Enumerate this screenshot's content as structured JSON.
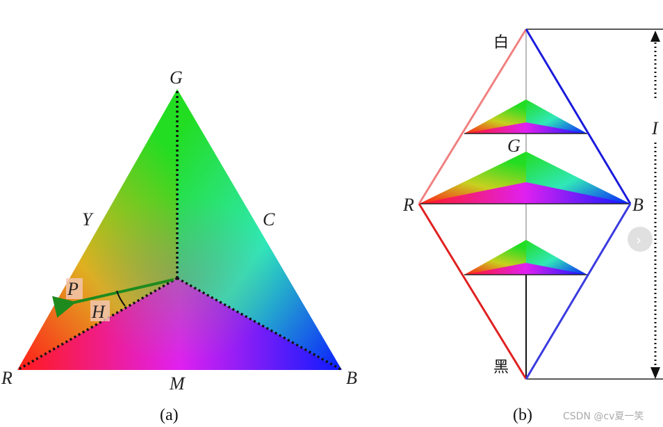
{
  "panel_a": {
    "caption": "(a)",
    "vertex_labels": {
      "red": "R",
      "green": "G",
      "blue": "B"
    },
    "edge_labels": {
      "yellow": "Y",
      "cyan": "C",
      "magenta": "M"
    },
    "point_label": "P",
    "hue_label": "H"
  },
  "panel_b": {
    "caption": "(b)",
    "white_label": "白",
    "black_label": "黑",
    "vertex_labels": {
      "red": "R",
      "green": "G",
      "blue": "B"
    },
    "intensity_label": "I"
  },
  "next_button": {
    "icon": "chevron-right-icon",
    "glyph": "›"
  },
  "watermark": "CSDN @cv夏一笑",
  "colors": {
    "red": "#ff1a1a",
    "green": "#22dd22",
    "blue": "#0a1aff",
    "arrow": "#1e8a1e",
    "white_edge": "#f08080",
    "blue_edge": "#1a1adc"
  }
}
